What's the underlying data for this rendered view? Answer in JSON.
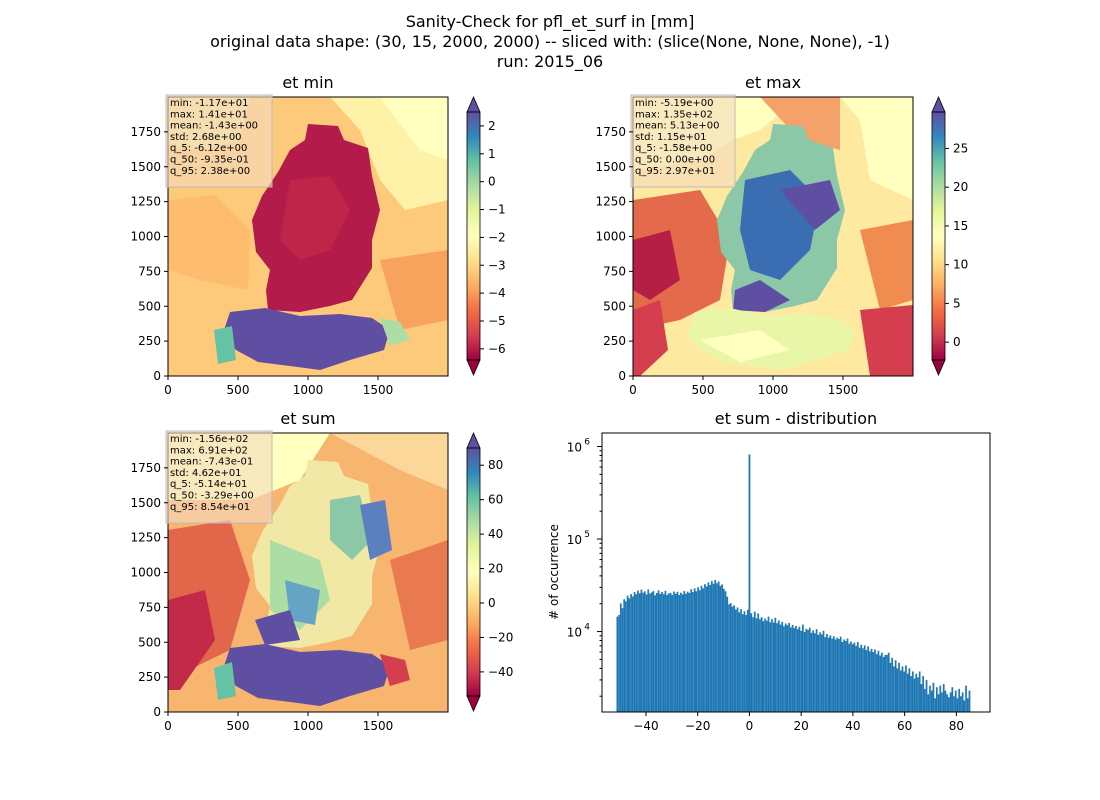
{
  "suptitle": {
    "line1": "Sanity-Check for pfl_et_surf in [mm]",
    "line2": "original data shape: (30, 15, 2000, 2000) -- sliced with: (slice(None, None, None), -1)",
    "line3": "run: 2015_06"
  },
  "chart_data": [
    {
      "type": "heatmap",
      "title": "et min",
      "xlim": [
        0,
        2000
      ],
      "ylim": [
        0,
        2000
      ],
      "xticks": [
        "0",
        "500",
        "1000",
        "1500"
      ],
      "yticks": [
        "0",
        "250",
        "500",
        "750",
        "1000",
        "1250",
        "1500",
        "1750"
      ],
      "colormap": "Spectral",
      "colorbar": {
        "min": -6.4,
        "max": 2.5,
        "ticks": [
          "2",
          "1",
          "0",
          "−1",
          "−2",
          "−3",
          "−4",
          "−5",
          "−6"
        ],
        "extend": "both"
      },
      "stats": [
        "min: -1.17e+01",
        "max: 1.41e+01",
        "mean: -1.43e+00",
        "std: 2.68e+00",
        "q_5: -6.12e+00",
        "q_50: -9.35e-01",
        "q_95: 2.38e+00"
      ]
    },
    {
      "type": "heatmap",
      "title": "et max",
      "xlim": [
        0,
        2000
      ],
      "ylim": [
        0,
        2000
      ],
      "xticks": [
        "0",
        "500",
        "1000",
        "1500"
      ],
      "yticks": [
        "0",
        "250",
        "500",
        "750",
        "1000",
        "1250",
        "1500",
        "1750"
      ],
      "colormap": "Spectral",
      "colorbar": {
        "min": -2.3,
        "max": 29.7,
        "ticks": [
          "25",
          "20",
          "15",
          "10",
          "5",
          "0"
        ],
        "extend": "both"
      },
      "stats": [
        "min: -5.19e+00",
        "max: 1.35e+02",
        "mean: 5.13e+00",
        "std: 1.15e+01",
        "q_5: -1.58e+00",
        "q_50: 0.00e+00",
        "q_95: 2.97e+01"
      ]
    },
    {
      "type": "heatmap",
      "title": "et sum",
      "xlim": [
        0,
        2000
      ],
      "ylim": [
        0,
        2000
      ],
      "xticks": [
        "0",
        "500",
        "1000",
        "1500"
      ],
      "yticks": [
        "0",
        "250",
        "500",
        "750",
        "1000",
        "1250",
        "1500",
        "1750"
      ],
      "colormap": "Spectral",
      "colorbar": {
        "min": -54,
        "max": 90,
        "ticks": [
          "80",
          "60",
          "40",
          "20",
          "0",
          "−20",
          "−40"
        ],
        "extend": "both"
      },
      "stats": [
        "min: -1.56e+02",
        "max: 6.91e+02",
        "mean: -7.43e-01",
        "std: 4.62e+01",
        "q_5: -5.14e+01",
        "q_50: -3.29e+00",
        "q_95: 8.54e+01"
      ]
    },
    {
      "type": "bar",
      "title": "et sum - distribution",
      "ylabel": "# of occurrence",
      "xlabel": "",
      "xlim": [
        -57,
        93
      ],
      "xticks": [
        -40,
        -20,
        0,
        20,
        40,
        60,
        80
      ],
      "xtick_labels": [
        "−40",
        "−20",
        "0",
        "20",
        "40",
        "60",
        "80"
      ],
      "yscale": "log",
      "ylim": [
        1350,
        1400000
      ],
      "ytick_labels": [
        "10",
        "10",
        "10"
      ],
      "ytick_exponents": [
        "4",
        "5",
        "6"
      ],
      "color": "#1f77b4",
      "bins": [
        -51.4,
        85.4
      ],
      "peak": {
        "x": 0,
        "count": 820000
      },
      "counts": [
        14500,
        15100,
        20100,
        17900,
        22300,
        21200,
        24400,
        22800,
        25400,
        23900,
        26700,
        25300,
        27700,
        25900,
        28400,
        26300,
        27200,
        25200,
        28500,
        25800,
        26500,
        27400,
        24700,
        26100,
        27900,
        25500,
        26800,
        25300,
        27600,
        24900,
        25900,
        26200,
        24800,
        27100,
        25600,
        26900,
        24800,
        26300,
        25200,
        27400,
        25700,
        27000,
        26100,
        28700,
        26800,
        29300,
        27200,
        30100,
        27900,
        31200,
        29300,
        32500,
        30700,
        34000,
        31900,
        35200,
        32900,
        36100,
        33300,
        34800,
        31200,
        32300,
        28900,
        27200,
        23800,
        19700,
        20300,
        18600,
        19200,
        17300,
        18200,
        16100,
        17500,
        15400,
        16600,
        15100,
        17200,
        14700,
        15800,
        14300,
        16400,
        13900,
        15700,
        13600,
        14300,
        12900,
        13800,
        13100,
        14500,
        12600,
        13600,
        12500,
        14100,
        12300,
        13200,
        11900,
        12700,
        11400,
        12200,
        11700,
        12400,
        11100,
        11800,
        10900,
        11500,
        10600,
        11300,
        10200,
        11900,
        9900,
        10700,
        10400,
        11000,
        9700,
        10300,
        9600,
        10600,
        9200,
        9800,
        9300,
        10200,
        8700,
        9400,
        8600,
        9100,
        8400,
        8900,
        8200,
        8600,
        8300,
        8800,
        7700,
        8200,
        7900,
        8400,
        7400,
        7800,
        7300,
        7600,
        7000,
        7700,
        6700,
        7200,
        6600,
        7100,
        6300,
        6900,
        6100,
        6500,
        6000,
        6400,
        5700,
        6200,
        5500,
        5900,
        5300,
        5600,
        5600,
        5900,
        4600,
        5200,
        4200,
        4900,
        4000,
        4600,
        3800,
        4200,
        3700,
        4300,
        3500,
        4000,
        3300,
        3700,
        3100,
        3500,
        3200,
        3700,
        2700,
        3300,
        2400,
        3000,
        2100,
        2600,
        2300,
        2800,
        1900,
        2500,
        2100,
        2600,
        2200,
        2700,
        2300,
        2100,
        1950,
        2200,
        2500,
        2000,
        2300,
        1900,
        2400,
        2000,
        2200,
        1800,
        2600,
        1900,
        2300
      ]
    }
  ]
}
